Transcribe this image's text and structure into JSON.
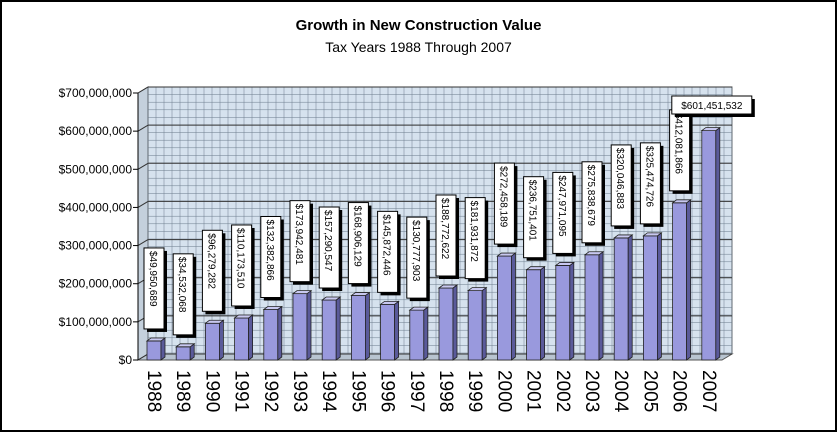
{
  "chart_data": {
    "type": "bar",
    "title": "Growth in New Construction Value",
    "subtitle": "Tax Years 1988 Through 2007",
    "ylim": [
      0,
      700000000
    ],
    "yticks": [
      "$0",
      "$100,000,000",
      "$200,000,000",
      "$300,000,000",
      "$400,000,000",
      "$500,000,000",
      "$600,000,000",
      "$700,000,000"
    ],
    "categories": [
      "1988",
      "1989",
      "1990",
      "1991",
      "1992",
      "1993",
      "1994",
      "1995",
      "1996",
      "1997",
      "1998",
      "1999",
      "2000",
      "2001",
      "2002",
      "2003",
      "2004",
      "2005",
      "2006",
      "2007"
    ],
    "values": [
      49950689,
      34532068,
      96279282,
      110173510,
      132382866,
      173942481,
      157290547,
      168906129,
      145872446,
      130777903,
      188772622,
      181931872,
      272458189,
      236751401,
      247971095,
      275838679,
      320046883,
      325474726,
      412081866,
      601451532
    ],
    "data_labels": [
      "$49,950,689",
      "$34,532,068",
      "$96,279,282",
      "$110,173,510",
      "$132,382,866",
      "$173,942,481",
      "$157,290,547",
      "$168,906,129",
      "$145,872,446",
      "$130,777,903",
      "$188,772,622",
      "$181,931,872",
      "$272,458,189",
      "$236,751,401",
      "$247,971,095",
      "$275,838,679",
      "$320,046,883",
      "$325,474,726",
      "$412,081,866",
      "$601,451,532"
    ],
    "grid": true,
    "colors": {
      "bar_front": "#9999dd",
      "bar_side": "#5a5a9a",
      "bar_top": "#c8c8f0",
      "wall": "#d6e2ee",
      "grid": "#6c7c8c"
    }
  }
}
